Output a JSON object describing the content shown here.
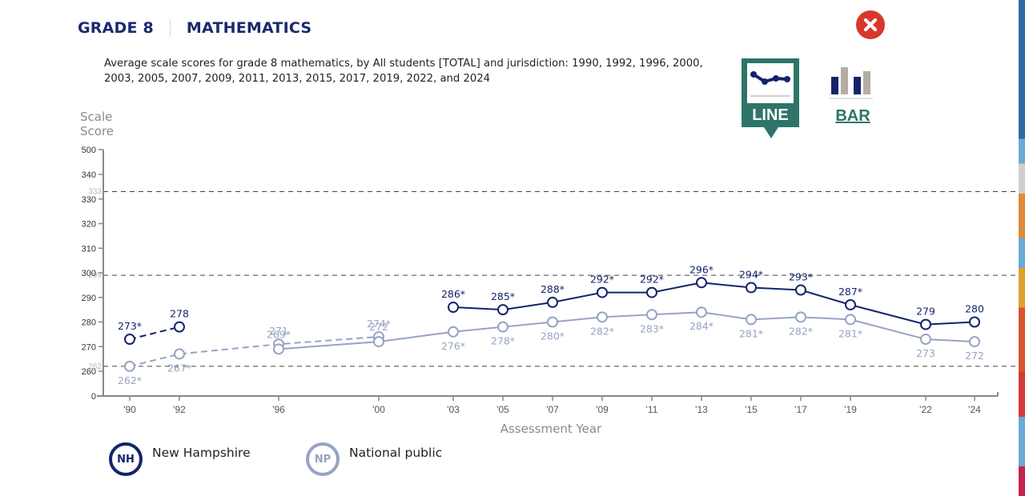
{
  "header": {
    "grade": "GRADE 8",
    "subject": "MATHEMATICS"
  },
  "subtitle": "Average scale scores for grade 8 mathematics, by All students [TOTAL] and jurisdiction: 1990, 1992, 1996, 2000, 2003, 2005, 2007, 2009, 2011, 2013, 2015, 2017, 2019, 2022, and 2024",
  "controls": {
    "close_icon": "close-icon",
    "line_label": "LINE",
    "bar_label": "BAR",
    "selected_view": "LINE"
  },
  "colors": {
    "nh": "#14246b",
    "np": "#97a3c4",
    "accent": "#2e7469",
    "close": "#d9372b",
    "bar_gray": "#b5ada4"
  },
  "chart_data": {
    "type": "line",
    "title": "Average scale scores for grade 8 mathematics",
    "ylabel": "Scale Score",
    "xlabel": "Assessment Year",
    "y_ticks": [
      0,
      260,
      270,
      280,
      290,
      300,
      310,
      320,
      330,
      340,
      500
    ],
    "y_tick_labels": [
      "0",
      "260",
      "270",
      "280",
      "290",
      "300",
      "310",
      "320",
      "330",
      "340",
      "500"
    ],
    "y_axis_break": "0-260 and 340-500 compressed",
    "x": [
      1990,
      1992,
      1996,
      2000,
      2003,
      2005,
      2007,
      2009,
      2011,
      2013,
      2015,
      2017,
      2019,
      2022,
      2024
    ],
    "x_tick_labels": [
      "'90",
      "'92",
      "'96",
      "'00",
      "'03",
      "'05",
      "'07",
      "'09",
      "'11",
      "'13",
      "'15",
      "'17",
      "'19",
      "'22",
      "'24"
    ],
    "reference_lines": [
      {
        "value": 333,
        "label": "333",
        "style": "dashed"
      },
      {
        "value": 299,
        "label": "299",
        "style": "dashed"
      },
      {
        "value": 262,
        "label": "262",
        "style": "dashed"
      }
    ],
    "series": [
      {
        "name": "New Hampshire",
        "abbr": "NH",
        "segments": [
          {
            "style": "dashed",
            "points": [
              {
                "x": 1990,
                "y": 273,
                "label": "273*"
              },
              {
                "x": 1992,
                "y": 278,
                "label": "278"
              }
            ]
          },
          {
            "style": "solid",
            "points": [
              {
                "x": 2003,
                "y": 286,
                "label": "286*"
              },
              {
                "x": 2005,
                "y": 285,
                "label": "285*"
              },
              {
                "x": 2007,
                "y": 288,
                "label": "288*"
              },
              {
                "x": 2009,
                "y": 292,
                "label": "292*"
              },
              {
                "x": 2011,
                "y": 292,
                "label": "292*"
              },
              {
                "x": 2013,
                "y": 296,
                "label": "296*"
              },
              {
                "x": 2015,
                "y": 294,
                "label": "294*"
              },
              {
                "x": 2017,
                "y": 293,
                "label": "293*"
              },
              {
                "x": 2019,
                "y": 287,
                "label": "287*"
              },
              {
                "x": 2022,
                "y": 279,
                "label": "279"
              },
              {
                "x": 2024,
                "y": 280,
                "label": "280"
              }
            ]
          }
        ]
      },
      {
        "name": "National public",
        "abbr": "NP",
        "segments": [
          {
            "style": "dashed",
            "points": [
              {
                "x": 1990,
                "y": 262,
                "label": "262*"
              },
              {
                "x": 1992,
                "y": 267,
                "label": "267*"
              },
              {
                "x": 1996,
                "y": 271,
                "label": "271"
              },
              {
                "x": 2000,
                "y": 274,
                "label": "274*"
              }
            ]
          },
          {
            "style": "solid",
            "points": [
              {
                "x": 1996,
                "y": 269,
                "label": "269*"
              },
              {
                "x": 2000,
                "y": 272,
                "label": "272"
              },
              {
                "x": 2003,
                "y": 276,
                "label": "276*"
              },
              {
                "x": 2005,
                "y": 278,
                "label": "278*"
              },
              {
                "x": 2007,
                "y": 280,
                "label": "280*"
              },
              {
                "x": 2009,
                "y": 282,
                "label": "282*"
              },
              {
                "x": 2011,
                "y": 283,
                "label": "283*"
              },
              {
                "x": 2013,
                "y": 284,
                "label": "284*"
              },
              {
                "x": 2015,
                "y": 281,
                "label": "281*"
              },
              {
                "x": 2017,
                "y": 282,
                "label": "282*"
              },
              {
                "x": 2019,
                "y": 281,
                "label": "281*"
              },
              {
                "x": 2022,
                "y": 273,
                "label": "273"
              },
              {
                "x": 2024,
                "y": 272,
                "label": "272"
              }
            ]
          }
        ]
      }
    ],
    "legend": [
      {
        "abbr": "NH",
        "name": "New Hampshire"
      },
      {
        "abbr": "NP",
        "name": "National public"
      }
    ],
    "legend_position": "bottom-left",
    "grid": false
  }
}
